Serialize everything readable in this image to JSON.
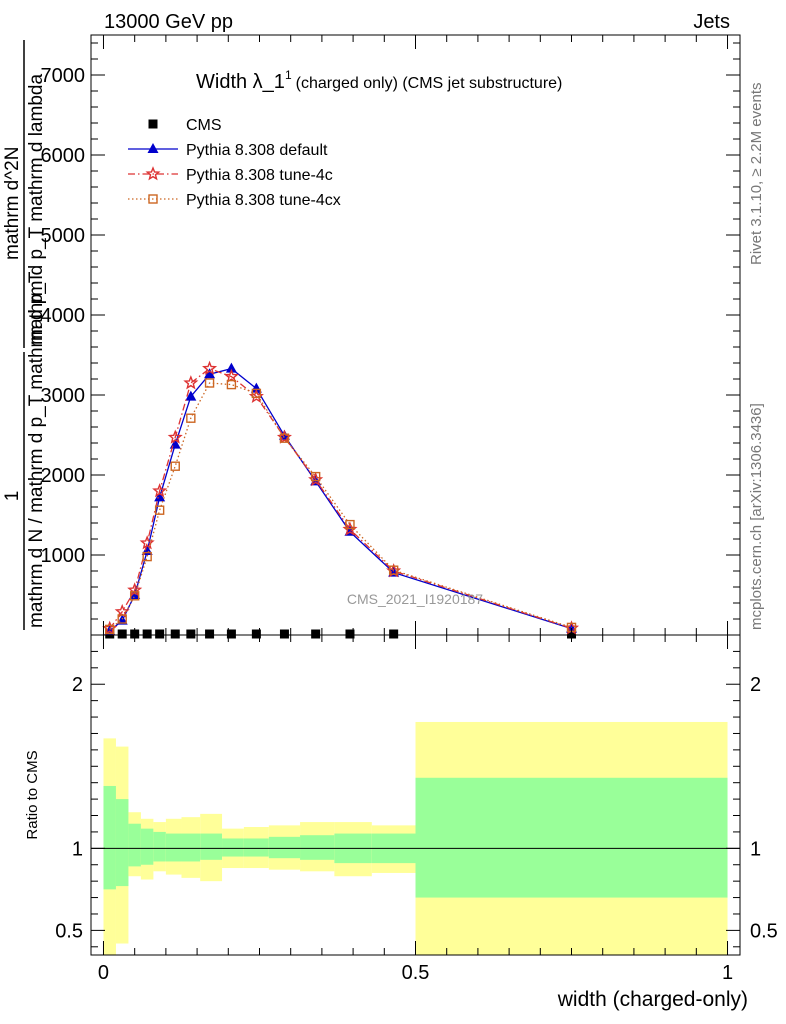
{
  "header": {
    "left": "13000 GeV pp",
    "right": "Jets"
  },
  "side_labels": {
    "rivet": "Rivet 3.1.10, ≥ 2.2M events",
    "mcplots": "mcplots.cern.ch [arXiv:1306.3436]"
  },
  "chart_data": [
    {
      "type": "line",
      "title": "Width λ_1",
      "title_sup": "1",
      "subtitle": "(charged only) (CMS jet substructure)",
      "watermark": "CMS_2021_I1920187",
      "ylabel": {
        "frac_num": "1",
        "frac_den": "mathrm d N / mathrm d p_T mathrm d p_T",
        "rhs_num": "mathrm d^2N",
        "rhs_den": "mathrm d p_T mathrm d lambda"
      },
      "xlim": [
        -0.02,
        1.02
      ],
      "ylim": [
        0,
        7500
      ],
      "yticks": [
        {
          "v": 1000,
          "label": "1000"
        },
        {
          "v": 2000,
          "label": "2000"
        },
        {
          "v": 3000,
          "label": "3000"
        },
        {
          "v": 4000,
          "label": "4000"
        },
        {
          "v": 5000,
          "label": "5000"
        },
        {
          "v": 6000,
          "label": "6000"
        },
        {
          "v": 7000,
          "label": "7000"
        }
      ],
      "legend_placement": "top-left",
      "series": [
        {
          "name": "CMS",
          "color": "#000000",
          "marker": "square",
          "x": [
            0.01,
            0.03,
            0.05,
            0.07,
            0.09,
            0.115,
            0.14,
            0.17,
            0.205,
            0.245,
            0.29,
            0.34,
            0.395,
            0.465,
            0.75
          ],
          "y": [
            0,
            0,
            0,
            0,
            0,
            0,
            0,
            0,
            0,
            0,
            0,
            0,
            0,
            0,
            0
          ]
        },
        {
          "name": "Pythia 8.308 default",
          "color": "#0000cc",
          "marker": "triangle",
          "line": "solid",
          "x": [
            0.01,
            0.03,
            0.05,
            0.07,
            0.09,
            0.115,
            0.14,
            0.17,
            0.205,
            0.245,
            0.29,
            0.34,
            0.395,
            0.465,
            0.75
          ],
          "y": [
            50,
            180,
            500,
            1050,
            1720,
            2380,
            2980,
            3260,
            3330,
            3080,
            2490,
            1920,
            1290,
            780,
            80
          ]
        },
        {
          "name": "Pythia 8.308 tune-4c",
          "color": "#dd3333",
          "marker": "star",
          "line": "dashdot",
          "x": [
            0.01,
            0.03,
            0.05,
            0.07,
            0.09,
            0.115,
            0.14,
            0.17,
            0.205,
            0.245,
            0.29,
            0.34,
            0.395,
            0.465,
            0.75
          ],
          "y": [
            80,
            290,
            560,
            1150,
            1800,
            2470,
            3150,
            3330,
            3230,
            2980,
            2470,
            1940,
            1320,
            800,
            85
          ]
        },
        {
          "name": "Pythia 8.308 tune-4cx",
          "color": "#cc6622",
          "marker": "opensquare",
          "line": "dotted",
          "x": [
            0.01,
            0.03,
            0.05,
            0.07,
            0.09,
            0.115,
            0.14,
            0.17,
            0.205,
            0.245,
            0.29,
            0.34,
            0.395,
            0.465,
            0.75
          ],
          "y": [
            70,
            200,
            490,
            980,
            1560,
            2110,
            2710,
            3150,
            3130,
            3020,
            2460,
            1980,
            1380,
            810,
            95
          ]
        }
      ]
    },
    {
      "type": "area",
      "ylabel": "Ratio to CMS",
      "xlabel": "width (charged-only)",
      "xlim": [
        -0.02,
        1.02
      ],
      "ylim": [
        0.35,
        2.3
      ],
      "xticks": [
        {
          "v": 0,
          "label": "0"
        },
        {
          "v": 0.5,
          "label": "0.5"
        },
        {
          "v": 1,
          "label": "1"
        }
      ],
      "yticks": [
        {
          "v": 0.5,
          "label": "0.5"
        },
        {
          "v": 1,
          "label": "1"
        },
        {
          "v": 2,
          "label": "2"
        }
      ],
      "band_colors": {
        "inner": "#99ff99",
        "outer": "#ffff99"
      },
      "bins": [
        {
          "x0": 0.0,
          "x1": 0.02,
          "g_lo": 0.75,
          "g_hi": 1.38,
          "y_lo": 0.35,
          "y_hi": 1.67
        },
        {
          "x0": 0.02,
          "x1": 0.04,
          "g_lo": 0.77,
          "g_hi": 1.3,
          "y_lo": 0.42,
          "y_hi": 1.62
        },
        {
          "x0": 0.04,
          "x1": 0.06,
          "g_lo": 0.89,
          "g_hi": 1.15,
          "y_lo": 0.83,
          "y_hi": 1.22
        },
        {
          "x0": 0.06,
          "x1": 0.08,
          "g_lo": 0.9,
          "g_hi": 1.12,
          "y_lo": 0.81,
          "y_hi": 1.18
        },
        {
          "x0": 0.08,
          "x1": 0.1,
          "g_lo": 0.92,
          "g_hi": 1.1,
          "y_lo": 0.86,
          "y_hi": 1.16
        },
        {
          "x0": 0.1,
          "x1": 0.125,
          "g_lo": 0.92,
          "g_hi": 1.09,
          "y_lo": 0.84,
          "y_hi": 1.18
        },
        {
          "x0": 0.125,
          "x1": 0.155,
          "g_lo": 0.92,
          "g_hi": 1.09,
          "y_lo": 0.82,
          "y_hi": 1.19
        },
        {
          "x0": 0.155,
          "x1": 0.19,
          "g_lo": 0.93,
          "g_hi": 1.09,
          "y_lo": 0.8,
          "y_hi": 1.21
        },
        {
          "x0": 0.19,
          "x1": 0.225,
          "g_lo": 0.95,
          "g_hi": 1.06,
          "y_lo": 0.88,
          "y_hi": 1.12
        },
        {
          "x0": 0.225,
          "x1": 0.265,
          "g_lo": 0.95,
          "g_hi": 1.06,
          "y_lo": 0.88,
          "y_hi": 1.13
        },
        {
          "x0": 0.265,
          "x1": 0.315,
          "g_lo": 0.94,
          "g_hi": 1.07,
          "y_lo": 0.87,
          "y_hi": 1.14
        },
        {
          "x0": 0.315,
          "x1": 0.37,
          "g_lo": 0.93,
          "g_hi": 1.08,
          "y_lo": 0.86,
          "y_hi": 1.16
        },
        {
          "x0": 0.37,
          "x1": 0.43,
          "g_lo": 0.91,
          "g_hi": 1.09,
          "y_lo": 0.83,
          "y_hi": 1.16
        },
        {
          "x0": 0.43,
          "x1": 0.5,
          "g_lo": 0.91,
          "g_hi": 1.09,
          "y_lo": 0.85,
          "y_hi": 1.14
        },
        {
          "x0": 0.5,
          "x1": 1.0,
          "g_lo": 0.7,
          "g_hi": 1.43,
          "y_lo": 0.35,
          "y_hi": 1.77
        }
      ],
      "reference_line": 1
    }
  ]
}
